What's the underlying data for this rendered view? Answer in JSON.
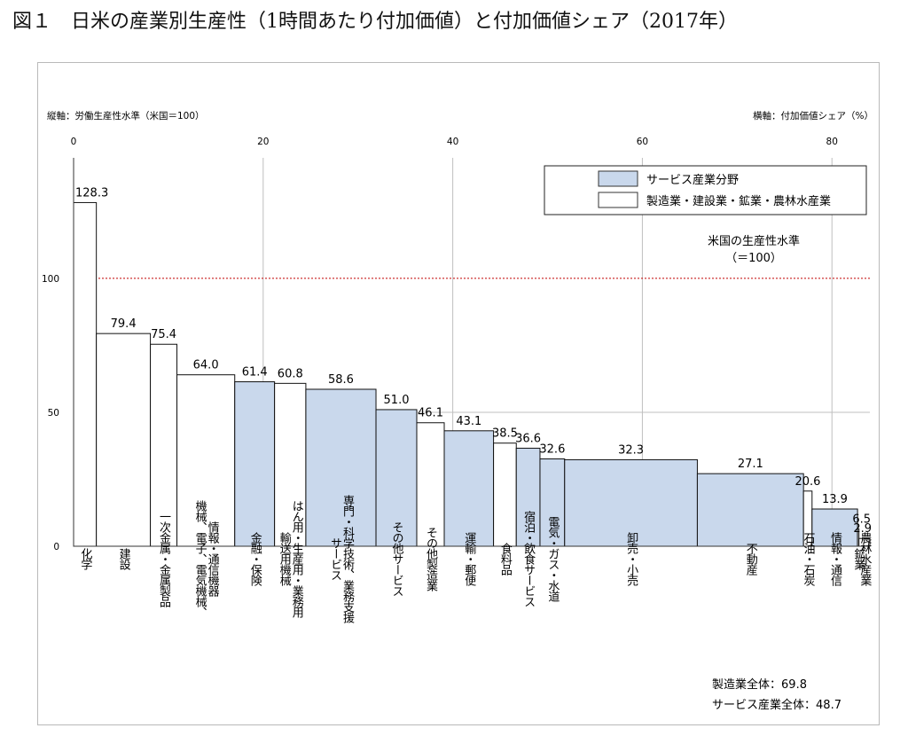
{
  "figure": {
    "title": "図１　日米の産業別生産性（1時間あたり付加価値）と付加価値シェア（2017年）",
    "y_axis_caption": "縦軸：労働生産性水準（米国＝100）",
    "x_axis_caption": "横軸：付加価値シェア（%）",
    "reference_line_label": "米国の生産性水準",
    "reference_line_value_label": "（＝100）",
    "totals": [
      {
        "label": "製造業全体",
        "value": "69.8"
      },
      {
        "label": "サービス産業全体",
        "value": "48.7"
      }
    ]
  },
  "chart_data": {
    "type": "bar",
    "subtype": "variable-width (marimekko)",
    "title": "日米の産業別生産性（1時間あたり付加価値）と付加価値シェア（2017年）",
    "xlabel": "付加価値シェア（%）",
    "ylabel": "労働生産性水準（米国＝100）",
    "xlim": [
      0,
      84
    ],
    "ylim": [
      0,
      145
    ],
    "x_ticks": [
      0,
      20,
      40,
      60,
      80
    ],
    "y_ticks": [
      0,
      50,
      100
    ],
    "grid": true,
    "reference_line": {
      "y": 100,
      "color": "#c00000",
      "style": "dotted"
    },
    "legend": {
      "position": "top-right",
      "entries": [
        {
          "label": "サービス産業分野",
          "color": "#c9d8ec"
        },
        {
          "label": "製造業・建設業・鉱業・農林水産業",
          "color": "#ffffff"
        }
      ]
    },
    "series": [
      {
        "category": "化学",
        "x_start": 0.0,
        "x_end": 2.4,
        "value": 128.3,
        "group": "manufacturing"
      },
      {
        "category": "建設",
        "x_start": 2.4,
        "x_end": 8.1,
        "value": 79.4,
        "group": "manufacturing"
      },
      {
        "category": "一次金属・金属製品",
        "x_start": 8.1,
        "x_end": 10.9,
        "value": 75.4,
        "group": "manufacturing"
      },
      {
        "category": "情報・通信機器 機械、電子、電気機械、",
        "x_start": 10.9,
        "x_end": 17.0,
        "value": 64.0,
        "group": "manufacturing"
      },
      {
        "category": "金融・保険",
        "x_start": 17.0,
        "x_end": 21.2,
        "value": 61.4,
        "group": "service"
      },
      {
        "category": "はん用・生産用・業務用 輸送用機械",
        "x_start": 21.2,
        "x_end": 24.5,
        "value": 60.8,
        "group": "manufacturing"
      },
      {
        "category": "専門・科学技術、業務支援 サービス",
        "x_start": 24.5,
        "x_end": 31.9,
        "value": 58.6,
        "group": "service"
      },
      {
        "category": "その他サービス",
        "x_start": 31.9,
        "x_end": 36.2,
        "value": 51.0,
        "group": "service"
      },
      {
        "category": "その他製造業",
        "x_start": 36.2,
        "x_end": 39.1,
        "value": 46.1,
        "group": "manufacturing"
      },
      {
        "category": "運輸・郵便",
        "x_start": 39.1,
        "x_end": 44.3,
        "value": 43.1,
        "group": "service"
      },
      {
        "category": "食料品",
        "x_start": 44.3,
        "x_end": 46.7,
        "value": 38.5,
        "group": "manufacturing"
      },
      {
        "category": "宿泊・飲食サービス",
        "x_start": 46.7,
        "x_end": 49.2,
        "value": 36.6,
        "group": "service"
      },
      {
        "category": "電気・ガス・水道",
        "x_start": 49.2,
        "x_end": 51.8,
        "value": 32.6,
        "group": "service"
      },
      {
        "category": "卸売・小売",
        "x_start": 51.8,
        "x_end": 65.8,
        "value": 32.3,
        "group": "service"
      },
      {
        "category": "不動産",
        "x_start": 65.8,
        "x_end": 77.0,
        "value": 27.1,
        "group": "service"
      },
      {
        "category": "石油・石炭",
        "x_start": 77.0,
        "x_end": 77.9,
        "value": 20.6,
        "group": "manufacturing"
      },
      {
        "category": "情報・通信",
        "x_start": 77.9,
        "x_end": 82.7,
        "value": 13.9,
        "group": "service"
      },
      {
        "category": "鉱業",
        "x_start": 82.7,
        "x_end": 82.85,
        "value": 6.5,
        "group": "manufacturing"
      },
      {
        "category": "農林水産業",
        "x_start": 82.85,
        "x_end": 84.0,
        "value": 2.9,
        "group": "manufacturing"
      }
    ]
  }
}
